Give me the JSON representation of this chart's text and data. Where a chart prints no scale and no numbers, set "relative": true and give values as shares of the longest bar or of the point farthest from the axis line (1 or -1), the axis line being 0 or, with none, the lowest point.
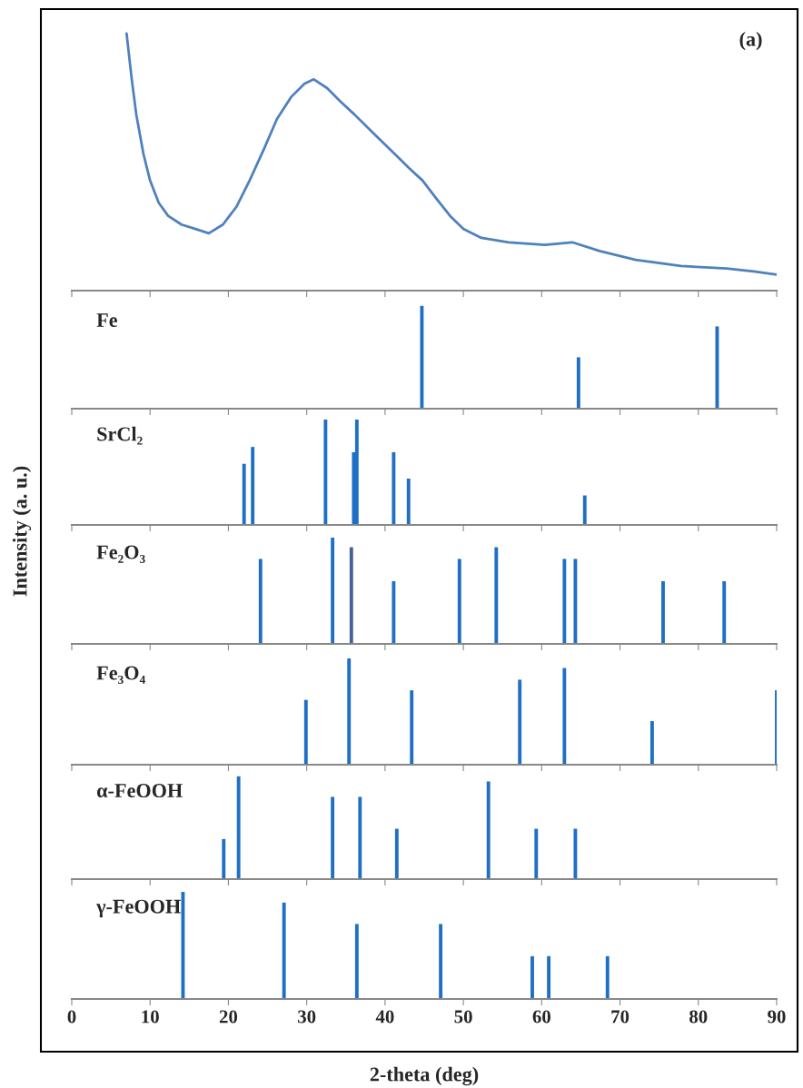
{
  "chart_data": [
    {
      "type": "line",
      "relative": true,
      "annotations": [
        "(a)"
      ],
      "xlim": [
        0,
        90
      ],
      "xticks": [
        0,
        10,
        20,
        30,
        40,
        50,
        60,
        70,
        80,
        90
      ],
      "tick_labels": false,
      "grid": false,
      "series": [
        {
          "color": "#4f81bd",
          "x": [
            7.0,
            7.66,
            8.24,
            9.16,
            10.0,
            11.1,
            12.3,
            14.0,
            15.8,
            17.5,
            19.3,
            21.0,
            22.7,
            24.5,
            26.2,
            28.0,
            29.7,
            30.9,
            32.6,
            34.3,
            36.1,
            38.4,
            40.7,
            43.0,
            44.8,
            46.5,
            48.3,
            50.0,
            52.3,
            55.8,
            60.4,
            63.9,
            67.4,
            72.0,
            77.8,
            83.6,
            87.1,
            90.0
          ],
          "values": [
            1.0,
            0.822,
            0.685,
            0.531,
            0.428,
            0.342,
            0.291,
            0.257,
            0.24,
            0.223,
            0.257,
            0.325,
            0.428,
            0.548,
            0.668,
            0.753,
            0.805,
            0.822,
            0.788,
            0.736,
            0.685,
            0.616,
            0.548,
            0.479,
            0.428,
            0.36,
            0.291,
            0.24,
            0.205,
            0.188,
            0.178,
            0.188,
            0.154,
            0.12,
            0.096,
            0.086,
            0.075,
            0.062
          ]
        }
      ]
    },
    {
      "type": "bar",
      "relative": true,
      "title": "Fe",
      "xlim": [
        0,
        90
      ],
      "xticks": [
        0,
        10,
        20,
        30,
        40,
        50,
        60,
        70,
        80,
        90
      ],
      "tick_labels": false,
      "grid": false,
      "x": [
        44.7,
        64.7,
        82.4
      ],
      "values": [
        1.0,
        0.5,
        0.8
      ],
      "colors": [
        "#1f6fc5",
        "#1f6fc5",
        "#1f6fc5"
      ]
    },
    {
      "type": "bar",
      "relative": true,
      "title": "SrCl₂",
      "xlim": [
        0,
        90
      ],
      "xticks": [
        0,
        10,
        20,
        30,
        40,
        50,
        60,
        70,
        80,
        90
      ],
      "tick_labels": false,
      "grid": false,
      "x": [
        22.0,
        23.1,
        32.4,
        36.0,
        36.4,
        41.1,
        43.0,
        65.5
      ],
      "values": [
        0.58,
        0.74,
        1.0,
        0.69,
        1.0,
        0.69,
        0.44,
        0.28
      ],
      "colors": [
        "#1f6fc5",
        "#1f6fc5",
        "#1f6fc5",
        "#1f6fc5",
        "#1f6fc5",
        "#1f6fc5",
        "#1f6fc5",
        "#1f6fc5"
      ]
    },
    {
      "type": "bar",
      "relative": true,
      "title": "Fe₂O₃",
      "ylabel": "Intensity (a. u.)",
      "xlim": [
        0,
        90
      ],
      "xticks": [
        0,
        10,
        20,
        30,
        40,
        50,
        60,
        70,
        80,
        90
      ],
      "tick_labels": false,
      "grid": false,
      "x": [
        24.1,
        33.3,
        35.7,
        41.1,
        49.5,
        54.2,
        62.9,
        64.3,
        75.5,
        83.3
      ],
      "values": [
        0.8,
        1.0,
        0.91,
        0.59,
        0.8,
        0.91,
        0.8,
        0.8,
        0.59,
        0.59
      ],
      "colors": [
        "#1f6fc5",
        "#1f6fc5",
        "#44619c",
        "#1f6fc5",
        "#1f6fc5",
        "#1f6fc5",
        "#1f6fc5",
        "#1f6fc5",
        "#1f6fc5",
        "#1f6fc5"
      ]
    },
    {
      "type": "bar",
      "relative": true,
      "title": "Fe₃O₄",
      "xlim": [
        0,
        90
      ],
      "xticks": [
        0,
        10,
        20,
        30,
        40,
        50,
        60,
        70,
        80,
        90
      ],
      "tick_labels": false,
      "grid": false,
      "x": [
        29.9,
        35.4,
        43.4,
        57.2,
        62.9,
        74.1,
        90.0
      ],
      "values": [
        0.61,
        1.0,
        0.7,
        0.8,
        0.91,
        0.41,
        0.7
      ],
      "colors": [
        "#1f6fc5",
        "#1f6fc5",
        "#1f6fc5",
        "#1f6fc5",
        "#1f6fc5",
        "#1f6fc5",
        "#1f6fc5"
      ]
    },
    {
      "type": "bar",
      "relative": true,
      "title": "α-FeOOH",
      "xlim": [
        0,
        90
      ],
      "xticks": [
        0,
        10,
        20,
        30,
        40,
        50,
        60,
        70,
        80,
        90
      ],
      "tick_labels": false,
      "grid": false,
      "x": [
        19.4,
        21.3,
        33.3,
        36.8,
        41.5,
        53.2,
        59.3,
        64.3
      ],
      "values": [
        0.39,
        1.0,
        0.8,
        0.8,
        0.49,
        0.95,
        0.49,
        0.49
      ],
      "colors": [
        "#1f6fc5",
        "#1f6fc5",
        "#1f6fc5",
        "#1f6fc5",
        "#1f6fc5",
        "#1f6fc5",
        "#1f6fc5",
        "#1f6fc5"
      ]
    },
    {
      "type": "bar",
      "relative": true,
      "title": "γ-FeOOH",
      "xlabel": "2-theta (deg)",
      "xlim": [
        0,
        90
      ],
      "xticks": [
        0,
        10,
        20,
        30,
        40,
        50,
        60,
        70,
        80,
        90
      ],
      "tick_labels": "x",
      "grid": false,
      "x": [
        14.2,
        27.1,
        36.4,
        47.1,
        58.8,
        60.9,
        68.4
      ],
      "values": [
        1.0,
        0.9,
        0.7,
        0.7,
        0.4,
        0.4,
        0.4
      ],
      "colors": [
        "#1f6fc5",
        "#1f6fc5",
        "#1f6fc5",
        "#1f6fc5",
        "#1f6fc5",
        "#1f6fc5",
        "#1f6fc5"
      ]
    }
  ]
}
